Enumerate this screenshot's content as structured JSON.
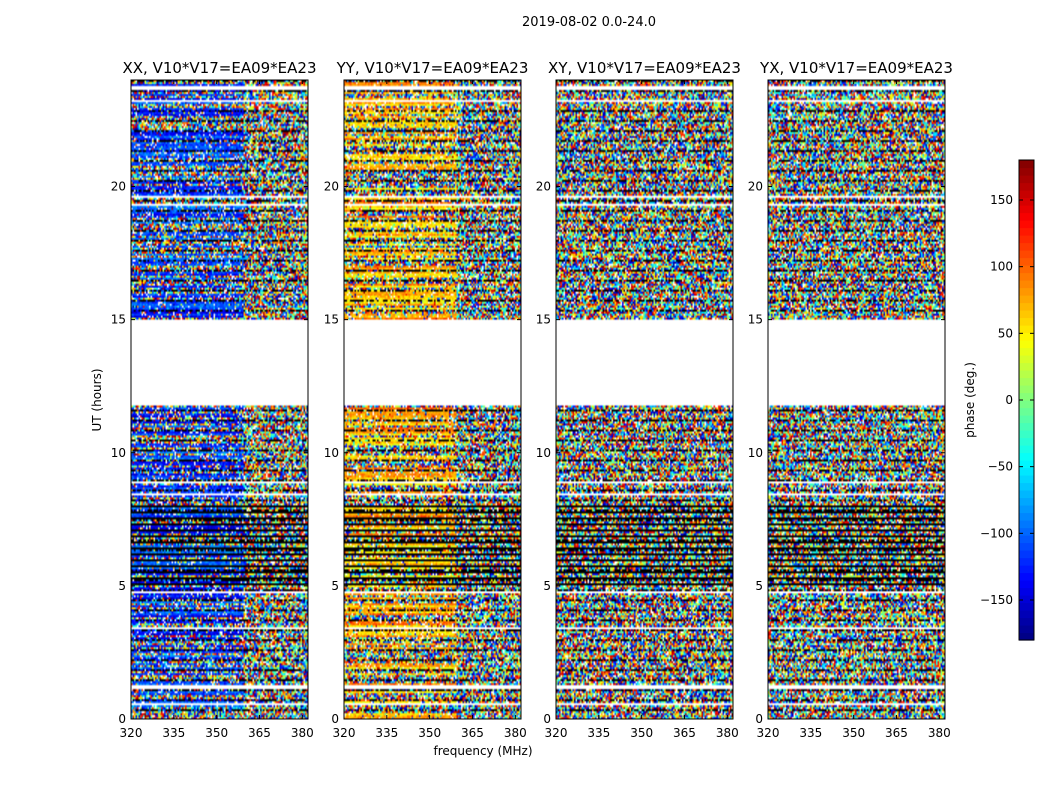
{
  "chart_data": {
    "type": "heatmap",
    "suptitle": "2019-08-02 0.0-24.0",
    "panels": [
      {
        "title": "XX, V10*V17=EA09*EA23",
        "seed": 11,
        "coherence": 0.85,
        "center": -120,
        "coherent_fraction": 0.62
      },
      {
        "title": "YY, V10*V17=EA09*EA23",
        "seed": 23,
        "coherence": 0.85,
        "center": 70,
        "coherent_fraction": 0.62
      },
      {
        "title": "XY, V10*V17=EA09*EA23",
        "seed": 37,
        "coherence": 0.05,
        "center": 0,
        "coherent_fraction": 0.0
      },
      {
        "title": "YX, V10*V17=EA09*EA23",
        "seed": 51,
        "coherence": 0.12,
        "center": -40,
        "coherent_fraction": 0.3
      }
    ],
    "xlabel": "frequency (MHz)",
    "ylabel": "UT (hours)",
    "xlim": [
      320,
      382
    ],
    "xticks": [
      320,
      335,
      350,
      365,
      380
    ],
    "ylim": [
      0,
      24
    ],
    "yticks": [
      0,
      5,
      10,
      15,
      20
    ],
    "colorbar": {
      "label": "phase (deg.)",
      "range": [
        -180,
        180
      ],
      "ticks": [
        -150,
        -100,
        -50,
        0,
        50,
        100,
        150
      ],
      "colormap": "jet"
    },
    "gaps": [
      [
        11.8,
        15.0
      ]
    ],
    "flagged_rows": [
      0.55,
      1.2,
      3.4,
      4.75,
      8.45,
      8.9,
      19.3,
      19.6,
      23.2,
      23.7
    ],
    "dark_band": [
      5.0,
      8.2
    ]
  }
}
